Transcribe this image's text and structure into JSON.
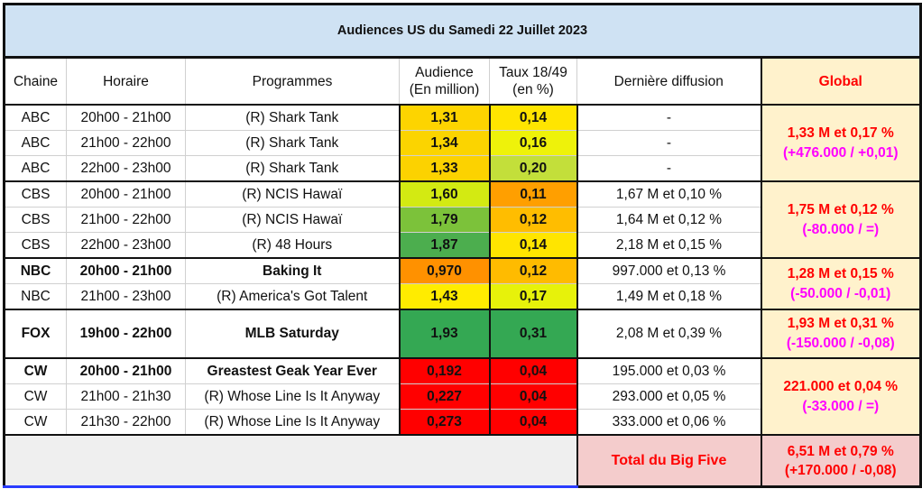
{
  "title": "Audiences US du Samedi 22 Juillet 2023",
  "headers": {
    "chaine": "Chaine",
    "horaire": "Horaire",
    "programmes": "Programmes",
    "audience1": "Audience",
    "audience2": "(En million)",
    "taux1": "Taux 18/49",
    "taux2": "(en %)",
    "derniere": "Dernière diffusion",
    "global": "Global"
  },
  "rows": [
    {
      "chaine": "ABC",
      "horaire": "20h00 - 21h00",
      "programme": "(R) Shark Tank",
      "audience": "1,31",
      "taux": "0,14",
      "derniere": "-",
      "aud_color": "#fdd400",
      "taux_color": "#ffe500",
      "bold": false
    },
    {
      "chaine": "ABC",
      "horaire": "21h00 - 22h00",
      "programme": "(R) Shark Tank",
      "audience": "1,34",
      "taux": "0,16",
      "derniere": "-",
      "aud_color": "#fbd400",
      "taux_color": "#eef20a",
      "bold": false
    },
    {
      "chaine": "ABC",
      "horaire": "22h00 - 23h00",
      "programme": "(R) Shark Tank",
      "audience": "1,33",
      "taux": "0,20",
      "derniere": "-",
      "aud_color": "#fcd200",
      "taux_color": "#c3df3a",
      "bold": false
    },
    {
      "chaine": "CBS",
      "horaire": "20h00 - 21h00",
      "programme": "(R) NCIS Hawaï",
      "audience": "1,60",
      "taux": "0,11",
      "derniere": "1,67 M et 0,10 %",
      "aud_color": "#d3ea12",
      "taux_color": "#ff9f00",
      "bold": false
    },
    {
      "chaine": "CBS",
      "horaire": "21h00 - 22h00",
      "programme": "(R) NCIS Hawaï",
      "audience": "1,79",
      "taux": "0,12",
      "derniere": "1,64 M et 0,12 %",
      "aud_color": "#7cc23a",
      "taux_color": "#ffbd00",
      "bold": false
    },
    {
      "chaine": "CBS",
      "horaire": "22h00 - 23h00",
      "programme": "(R) 48 Hours",
      "audience": "1,87",
      "taux": "0,14",
      "derniere": "2,18 M et 0,15 %",
      "aud_color": "#4cae4e",
      "taux_color": "#ffe500",
      "bold": false
    },
    {
      "chaine": "NBC",
      "horaire": "20h00 - 21h00",
      "programme": "Baking It",
      "audience": "0,970",
      "taux": "0,12",
      "derniere": "997.000 et 0,13 %",
      "aud_color": "#ff9100",
      "taux_color": "#ffbb00",
      "bold": true
    },
    {
      "chaine": "NBC",
      "horaire": "21h00 - 23h00",
      "programme": "(R) America's Got Talent",
      "audience": "1,43",
      "taux": "0,17",
      "derniere": "1,49 M et 0,18 %",
      "aud_color": "#ffec00",
      "taux_color": "#e7f20a",
      "bold": false
    },
    {
      "chaine": "FOX",
      "horaire": "19h00 - 22h00",
      "programme": "MLB Saturday",
      "audience": "1,93",
      "taux": "0,31",
      "derniere": "2,08 M et 0,39 %",
      "aud_color": "#34a853",
      "taux_color": "#34a853",
      "bold": true
    },
    {
      "chaine": "CW",
      "horaire": "20h00 - 21h00",
      "programme": "Greastest Geak Year Ever",
      "audience": "0,192",
      "taux": "0,04",
      "derniere": "195.000 et 0,03 %",
      "aud_color": "#ff0000",
      "taux_color": "#ff0000",
      "bold": true
    },
    {
      "chaine": "CW",
      "horaire": "21h00 - 21h30",
      "programme": "(R) Whose Line Is It Anyway",
      "audience": "0,227",
      "taux": "0,04",
      "derniere": "293.000 et 0,05 %",
      "aud_color": "#ff0000",
      "taux_color": "#ff0000",
      "bold": false
    },
    {
      "chaine": "CW",
      "horaire": "21h30 - 22h00",
      "programme": "(R) Whose Line Is It Anyway",
      "audience": "0,273",
      "taux": "0,04",
      "derniere": "333.000 et 0,06 %",
      "aud_color": "#ff0000",
      "taux_color": "#ff0000",
      "bold": false
    }
  ],
  "global": [
    {
      "main": "1,33 M et 0,17 %",
      "diff": "(+476.000 / +0,01)"
    },
    {
      "main": "1,75 M et 0,12 %",
      "diff": "(-80.000 / =)"
    },
    {
      "main": "1,28 M et 0,15 %",
      "diff": "(-50.000 / -0,01)"
    },
    {
      "main": "1,93 M et 0,31 %",
      "diff": "(-150.000 / -0,08)"
    },
    {
      "main": "221.000 et 0,04 %",
      "diff": "(-33.000 / =)"
    }
  ],
  "total": {
    "label": "Total du Big Five",
    "main": "6,51 M et 0,79 %",
    "diff": "(+170.000 / -0,08)"
  },
  "colors": {
    "title_bg": "#cfe2f3",
    "global_bg": "#fff2cc",
    "global_text": "#ff0000",
    "diff_text": "#ff00ff",
    "total_bg": "#f4cccc"
  }
}
